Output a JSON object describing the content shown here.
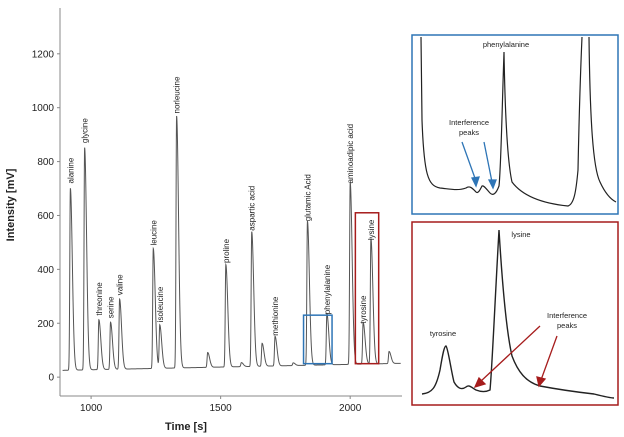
{
  "chart_data": [
    {
      "type": "line",
      "xlabel": "Time [s]",
      "ylabel": "Intensity [mV]",
      "xlim": [
        880,
        2200
      ],
      "ylim": [
        -70,
        1370
      ],
      "xticks": [
        1000,
        1500,
        2000
      ],
      "yticks": [
        0,
        200,
        400,
        600,
        800,
        1000,
        1200
      ],
      "baseline": 25,
      "series_color": "#555555",
      "peaks": [
        {
          "name": "alanine",
          "x": 920,
          "y": 700
        },
        {
          "name": "glycine",
          "x": 975,
          "y": 850
        },
        {
          "name": "threonine",
          "x": 1030,
          "y": 210
        },
        {
          "name": "serine",
          "x": 1075,
          "y": 200
        },
        {
          "name": "valine",
          "x": 1110,
          "y": 285
        },
        {
          "name": "leucine",
          "x": 1240,
          "y": 470
        },
        {
          "name": "isoleucine",
          "x": 1265,
          "y": 185
        },
        {
          "name": "norleucine",
          "x": 1330,
          "y": 960
        },
        {
          "name": "",
          "x": 1450,
          "y": 80
        },
        {
          "name": "proline",
          "x": 1520,
          "y": 405
        },
        {
          "name": "",
          "x": 1580,
          "y": 40
        },
        {
          "name": "aspartic acid",
          "x": 1620,
          "y": 525
        },
        {
          "name": "",
          "x": 1660,
          "y": 110
        },
        {
          "name": "methionine",
          "x": 1710,
          "y": 135
        },
        {
          "name": "",
          "x": 1780,
          "y": 35
        },
        {
          "name": "glutamic Acid",
          "x": 1835,
          "y": 560
        },
        {
          "name": "phenylalanine",
          "x": 1910,
          "y": 215
        },
        {
          "name": "aminoadipic acid",
          "x": 2000,
          "y": 700
        },
        {
          "name": "tyrosine",
          "x": 2050,
          "y": 180
        },
        {
          "name": "lysine",
          "x": 2080,
          "y": 490
        },
        {
          "name": "",
          "x": 2150,
          "y": 70
        }
      ],
      "highlight_boxes": [
        {
          "color": "#2e75b6",
          "x": [
            1820,
            1930
          ],
          "y": [
            50,
            230
          ]
        },
        {
          "color": "#a61c1c",
          "x": [
            2020,
            2110
          ],
          "y": [
            50,
            610
          ]
        }
      ]
    },
    {
      "type": "line",
      "title": "",
      "border_color": "#2e75b6",
      "peak_labels": [
        "phenylalanine"
      ],
      "annotation": "Interference\npeaks"
    },
    {
      "type": "line",
      "title": "",
      "border_color": "#a61c1c",
      "peak_labels": [
        "tyrosine",
        "lysine"
      ],
      "annotation": "Interference\npeaks"
    }
  ],
  "labels": {
    "xlabel": "Time [s]",
    "ylabel": "Intensity [mV]",
    "blue_peak": "phenylalanine",
    "blue_annot_line1": "Interference",
    "blue_annot_line2": "peaks",
    "red_peak_a": "tyrosine",
    "red_peak_b": "lysine",
    "red_annot_line1": "Interference",
    "red_annot_line2": "peaks"
  }
}
